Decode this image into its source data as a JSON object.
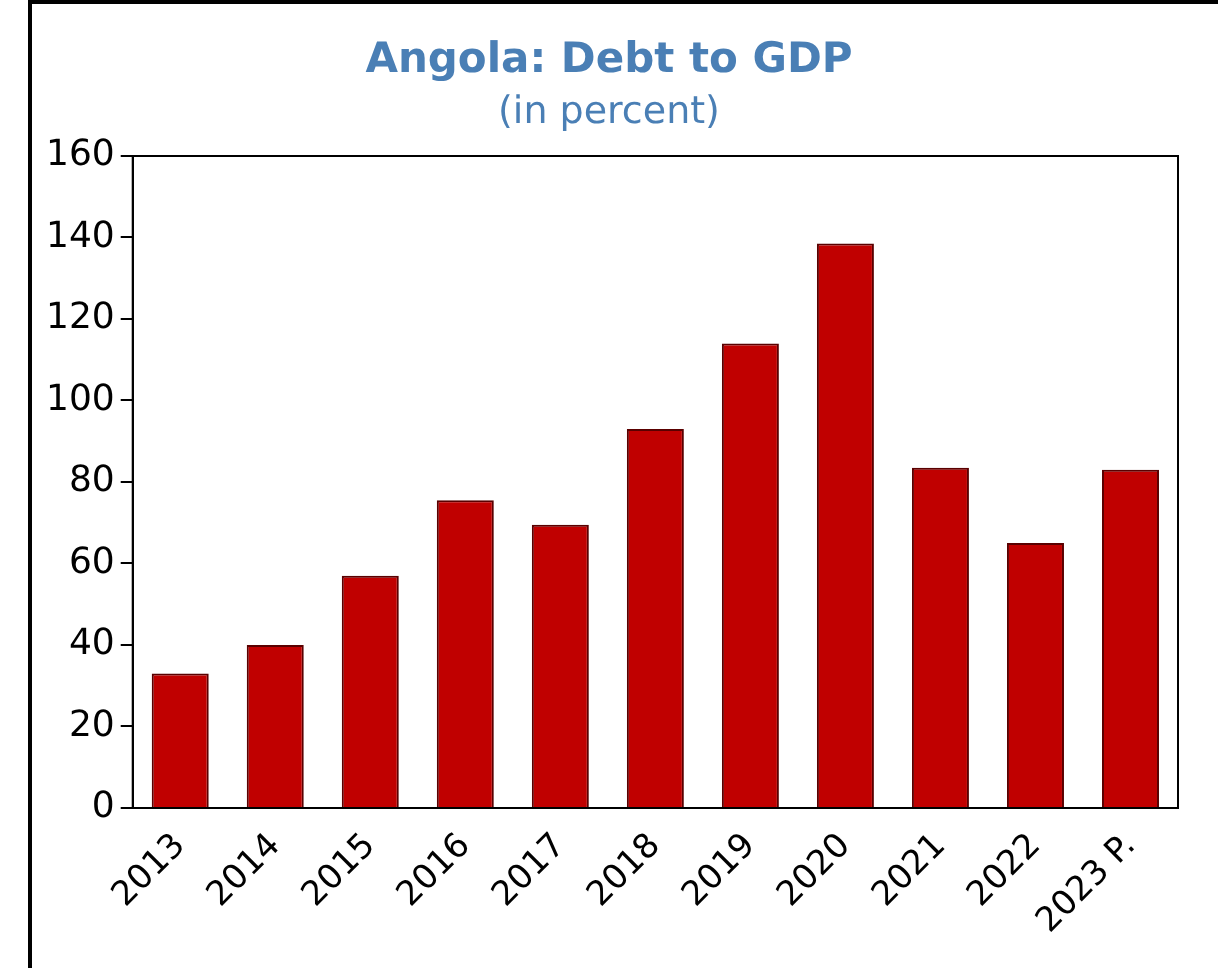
{
  "chart_data": {
    "type": "bar",
    "title": "Angola: Debt to GDP",
    "subtitle": "(in percent)",
    "categories": [
      "2013",
      "2014",
      "2015",
      "2016",
      "2017",
      "2018",
      "2019",
      "2020",
      "2021",
      "2022",
      "2023 P."
    ],
    "series": [
      {
        "color": "#c00000",
        "values": [
          33,
          40,
          57,
          75.5,
          69.5,
          93,
          114,
          138.5,
          83.5,
          65,
          83
        ]
      }
    ],
    "ylim": [
      0,
      160
    ],
    "yticks": [
      0,
      20,
      40,
      60,
      80,
      100,
      120,
      140,
      160
    ],
    "grid": false,
    "legend": false
  }
}
